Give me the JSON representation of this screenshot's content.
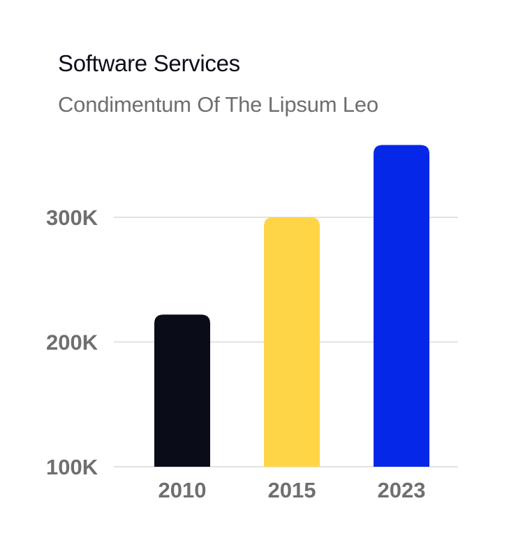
{
  "header": {
    "title": "Software Services",
    "subtitle": "Condimentum Of The Lipsum Leo"
  },
  "chart_data": {
    "type": "bar",
    "title": "Software Services",
    "subtitle": "Condimentum Of The Lipsum Leo",
    "categories": [
      "2010",
      "2015",
      "2023"
    ],
    "values": [
      222,
      300,
      358
    ],
    "value_unit": "K",
    "colors": [
      "#0a0c18",
      "#fed546",
      "#0528e8"
    ],
    "yticks": [
      100,
      200,
      300
    ],
    "ytick_labels": [
      "100K",
      "200K",
      "300K"
    ],
    "ylim": [
      100,
      360
    ],
    "grid": true,
    "gridline_color": "#e2e2e2",
    "xlabel": "",
    "ylabel": ""
  }
}
